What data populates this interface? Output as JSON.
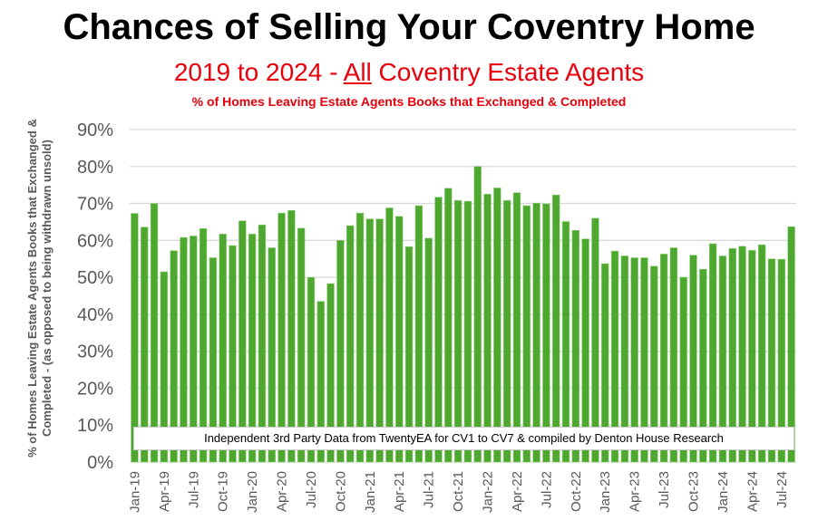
{
  "title": "Chances of Selling Your Coventry Home",
  "subtitle_pre": "2019 to 2024 - ",
  "subtitle_em": "All",
  "subtitle_post": " Coventry Estate Agents",
  "subsubtitle": "% of Homes Leaving Estate Agents Books that Exchanged & Completed",
  "note": "Independent 3rd Party Data from TwentyEA for CV1 to CV7 & compiled by Denton House Research",
  "colors": {
    "bar": "#4ea72e",
    "title_red": "#e8000b"
  },
  "chart_data": {
    "type": "bar",
    "title": "Chances of Selling Your Coventry Home",
    "xlabel": "",
    "ylabel": "% of Homes Leaving Estate Agents Books that Exchanged & Completed - (as opposed to being withdrawn unsold)",
    "ylim": [
      0,
      90
    ],
    "yticks": [
      "0%",
      "10%",
      "20%",
      "30%",
      "40%",
      "50%",
      "60%",
      "70%",
      "80%",
      "90%"
    ],
    "grid": true,
    "xtick_labels": [
      "Jan-19",
      "Apr-19",
      "Jul-19",
      "Oct-19",
      "Jan-20",
      "Apr-20",
      "Jul-20",
      "Oct-20",
      "Jan-21",
      "Apr-21",
      "Jul-21",
      "Oct-21",
      "Jan-22",
      "Apr-22",
      "Jul-22",
      "Oct-22",
      "Jan-23",
      "Apr-23",
      "Jul-23",
      "Oct-23",
      "Jan-24",
      "Apr-24",
      "Jul-24"
    ],
    "values": [
      67.3,
      63.6,
      70,
      51.5,
      57.2,
      60.8,
      61.2,
      63.2,
      55.3,
      61.7,
      58.6,
      65.3,
      61.7,
      64.2,
      58,
      67.4,
      68.1,
      63.3,
      50,
      43.5,
      48.3,
      60,
      64,
      67.4,
      65.8,
      65.8,
      68.8,
      66.5,
      58.3,
      69.4,
      60.6,
      71.7,
      74.1,
      70.8,
      70.6,
      80,
      72.5,
      74.2,
      70.8,
      72.9,
      69.4,
      70.1,
      69.9,
      72.3,
      65.1,
      62.7,
      60.4,
      66,
      53.7,
      57.1,
      55.8,
      55.3,
      55.3,
      53,
      56.3,
      58,
      50,
      56,
      52.2,
      59.1,
      55.8,
      57.8,
      58.4,
      57.3,
      58.8,
      55,
      54.9,
      63.7
    ]
  }
}
